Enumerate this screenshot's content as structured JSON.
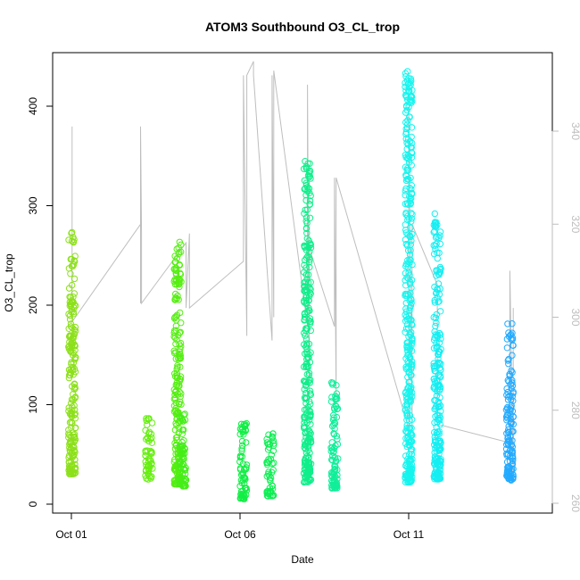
{
  "chart_data": {
    "type": "scatter",
    "title": "ATOM3 Southbound O3_CL_trop",
    "xlabel": "Date",
    "ylabel": "O3_CL_trop",
    "x_unit": "day of October 2017",
    "xlim": [
      0.95,
      14.6
    ],
    "ylim": [
      0,
      440
    ],
    "y2lim": [
      258,
      359
    ],
    "x_ticks": [
      {
        "value": 1,
        "label": "Oct 01"
      },
      {
        "value": 6,
        "label": "Oct 06"
      },
      {
        "value": 11,
        "label": "Oct 11"
      }
    ],
    "y_ticks": [
      0,
      100,
      200,
      300,
      400
    ],
    "y2_ticks": [
      260,
      280,
      300,
      320,
      340
    ],
    "grid": false,
    "legend": "none",
    "colors": {
      "line": "#bebebe",
      "axis": "#000000",
      "right_axis": "#bebebe"
    },
    "scatter_clusters": [
      {
        "x": 1.02,
        "ymin": 30,
        "ymax": 275,
        "color": "#8ce01a"
      },
      {
        "x": 3.3,
        "ymin": 25,
        "ymax": 90,
        "color": "#66ee10"
      },
      {
        "x": 4.15,
        "ymin": 20,
        "ymax": 265,
        "color": "#55ee12"
      },
      {
        "x": 4.3,
        "ymin": 18,
        "ymax": 95,
        "color": "#44ee18"
      },
      {
        "x": 6.1,
        "ymin": 5,
        "ymax": 85,
        "color": "#11ee44"
      },
      {
        "x": 6.9,
        "ymin": 8,
        "ymax": 78,
        "color": "#10ee55"
      },
      {
        "x": 8.0,
        "ymin": 22,
        "ymax": 345,
        "color": "#10ee8a"
      },
      {
        "x": 8.8,
        "ymin": 16,
        "ymax": 124,
        "color": "#10ee99"
      },
      {
        "x": 11.0,
        "ymin": 22,
        "ymax": 438,
        "color": "#16f4ee"
      },
      {
        "x": 11.85,
        "ymin": 25,
        "ymax": 292,
        "color": "#14eef2"
      },
      {
        "x": 14.0,
        "ymin": 24,
        "ymax": 182,
        "color": "#22aaff"
      }
    ],
    "line_series": {
      "name": "",
      "axis": "right",
      "x": [
        1.02,
        1.02,
        1.02,
        3.05,
        3.05,
        3.05,
        3.08,
        3.08,
        4.4,
        4.4,
        4.5,
        4.5,
        6.1,
        6.1,
        6.2,
        6.2,
        6.4,
        6.4,
        6.95,
        6.95,
        7.0,
        7.0,
        8.0,
        8.0,
        8.05,
        8.05,
        8.8,
        8.8,
        8.85,
        8.85,
        11.0,
        11.0,
        11.1,
        11.1,
        11.85,
        11.85,
        14.0,
        14.0,
        14.1,
        14.1
      ],
      "y": [
        299,
        341,
        299,
        320,
        303,
        341,
        318,
        303,
        316,
        302,
        318,
        302,
        312,
        352,
        296,
        352,
        355,
        352,
        295,
        352,
        300,
        353,
        298,
        350,
        282,
        315,
        298,
        330,
        283,
        330,
        276,
        345,
        276,
        320,
        307,
        277,
        273,
        310,
        265,
        302
      ]
    }
  }
}
